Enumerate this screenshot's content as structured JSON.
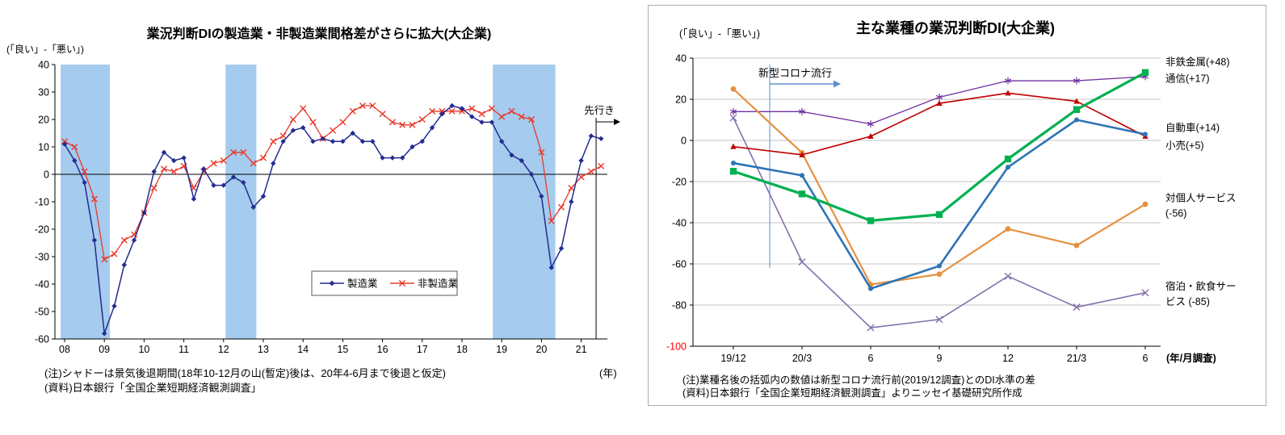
{
  "page": {
    "background": "#ffffff"
  },
  "chart_data": [
    {
      "id": "di-gap-timeseries",
      "type": "line",
      "title": "業況判断DIの製造業・非製造業間格差がさらに拡大(大企業)",
      "y_axis_caption": "(「良い」-「悪い」)",
      "x_unit_label": "(年)",
      "forecast_label": "先行き",
      "ylim": [
        -60,
        40
      ],
      "ytick_step": 10,
      "x_frequency": "quarterly",
      "x_years": [
        "08",
        "09",
        "10",
        "11",
        "12",
        "13",
        "14",
        "15",
        "16",
        "17",
        "18",
        "19",
        "20",
        "21"
      ],
      "band_color": "#A5CBEE",
      "recession_bands_quarter_index": [
        [
          -0.4,
          4.55
        ],
        [
          16.2,
          19.3
        ],
        [
          43.1,
          49.4
        ]
      ],
      "forecast_divider_quarter_index": 53.5,
      "series": [
        {
          "name": "製造業",
          "color": "#232C8E",
          "marker": "diamond",
          "line_width": 1.5,
          "marker_size": 3.2,
          "z": 2,
          "values": [
            11,
            5,
            -3,
            -24,
            -58,
            -48,
            -33,
            -24,
            -14,
            1,
            8,
            5,
            6,
            -9,
            2,
            -4,
            -4,
            -1,
            -3,
            -12,
            -8,
            4,
            12,
            16,
            17,
            12,
            13,
            12,
            12,
            15,
            12,
            12,
            6,
            6,
            6,
            10,
            12,
            17,
            22,
            25,
            24,
            21,
            19,
            19,
            12,
            7,
            5,
            0,
            -8,
            -34,
            -27,
            -10,
            5,
            14,
            13
          ]
        },
        {
          "name": "非製造業",
          "color": "#E8392B",
          "marker": "x",
          "line_width": 1.3,
          "marker_size": 3.5,
          "z": 1,
          "values": [
            12,
            10,
            1,
            -9,
            -31,
            -29,
            -24,
            -22,
            -14,
            -5,
            2,
            1,
            3,
            -5,
            1,
            4,
            5,
            8,
            8,
            4,
            6,
            12,
            14,
            20,
            24,
            19,
            13,
            16,
            19,
            23,
            25,
            25,
            22,
            19,
            18,
            18,
            20,
            23,
            23,
            23,
            23,
            24,
            22,
            24,
            21,
            23,
            21,
            20,
            8,
            -17,
            -12,
            -5,
            -1,
            1,
            3
          ]
        }
      ],
      "notes": [
        "(注)シャドーは景気後退期間(18年10-12月の山(暫定)後は、20年4-6月まで後退と仮定)",
        "(資料)日本銀行「全国企業短期経済観測調査」"
      ]
    },
    {
      "id": "di-by-industry",
      "type": "line",
      "title": "主な業種の業況判断DI(大企業)",
      "y_axis_caption": "(「良い」-「悪い」)",
      "x_unit_label": "(年/月調査)",
      "ylim": [
        -100,
        40
      ],
      "ytick_step": 20,
      "lowest_tick_color": "#FF0000",
      "grid_color": "#C6C6C6",
      "categories": [
        "19/12",
        "20/3",
        "6",
        "9",
        "12",
        "21/3",
        "6"
      ],
      "covid_annotation": {
        "label": "新型コロナ流行",
        "line_index": 0.53,
        "color": "#5E8FCB"
      },
      "series": [
        {
          "name": "非鉄金属",
          "offset_label": "(+48)",
          "color": "#00B050",
          "marker": "square",
          "line_width": 3.2,
          "marker_size": 4.2,
          "z": 6,
          "values": [
            -15,
            -26,
            -39,
            -36,
            -9,
            15,
            33
          ]
        },
        {
          "name": "通信",
          "offset_label": "(+17)",
          "color": "#7030A0",
          "marker": "asterisk",
          "line_width": 1.3,
          "marker_size": 4.4,
          "z": 2,
          "values": [
            14,
            14,
            8,
            21,
            29,
            29,
            31
          ]
        },
        {
          "name": "自動車",
          "offset_label": "(+14)",
          "color": "#2E74B5",
          "marker": "dot",
          "line_width": 2.6,
          "marker_size": 3.0,
          "z": 5,
          "values": [
            -11,
            -17,
            -72,
            -61,
            -13,
            10,
            3
          ]
        },
        {
          "name": "小売",
          "offset_label": "(+5)",
          "color": "#C00000",
          "marker": "triangle",
          "line_width": 1.6,
          "marker_size": 4.0,
          "z": 4,
          "values": [
            -3,
            -7,
            2,
            18,
            23,
            19,
            2
          ]
        },
        {
          "name": "対個人サービス",
          "offset_label": "(-56)",
          "color": "#E59140",
          "marker": "dot",
          "line_width": 2.2,
          "marker_size": 3.4,
          "z": 3,
          "values": [
            25,
            -6,
            -70,
            -65,
            -43,
            -51,
            -31
          ]
        },
        {
          "name": "宿泊・飲食サービス",
          "offset_label": "(-85)",
          "color": "#8271AC",
          "marker": "x",
          "line_width": 1.6,
          "marker_size": 4.0,
          "z": 1,
          "values": [
            11,
            -59,
            -91,
            -87,
            -66,
            -81,
            -74
          ]
        }
      ],
      "right_labels": [
        {
          "lines": [
            "非鉄金属(+48)"
          ],
          "y": [
            38
          ]
        },
        {
          "lines": [
            "通信(+17)"
          ],
          "y": [
            30
          ]
        },
        {
          "lines": [
            "自動車(+14)"
          ],
          "y": [
            6
          ]
        },
        {
          "lines": [
            "小売(+5)"
          ],
          "y": [
            -2.5
          ]
        },
        {
          "lines": [
            "対個人サービス",
            "(-56)"
          ],
          "y": [
            -28,
            -35.5
          ]
        },
        {
          "lines": [
            "宿泊・飲食サー",
            "ビス (-85)"
          ],
          "y": [
            -71,
            -78.5
          ]
        }
      ],
      "notes": [
        "(注)業種名後の括弧内の数値は新型コロナ流行前(2019/12調査)とのDI水準の差",
        "(資料)日本銀行「全国企業短期経済観測調査」よりニッセイ基礎研究所作成"
      ]
    }
  ]
}
